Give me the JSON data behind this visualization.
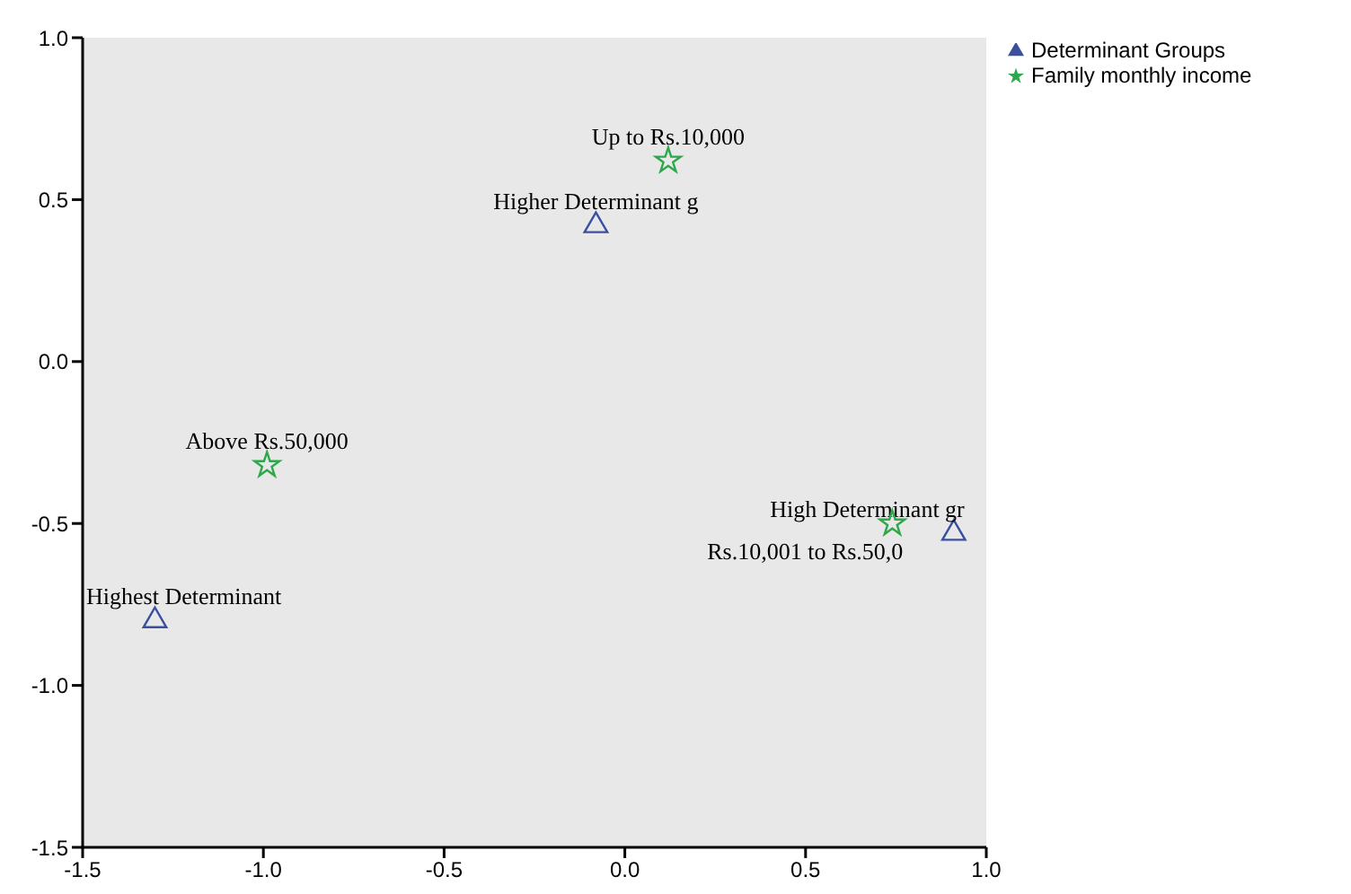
{
  "chart_data": {
    "type": "scatter",
    "xlim": [
      -1.5,
      1.0
    ],
    "xticks": [
      {
        "value": -1.5,
        "label": "-1.5"
      },
      {
        "value": -1.0,
        "label": "-1.0"
      },
      {
        "value": -0.5,
        "label": "-0.5"
      },
      {
        "value": 0.0,
        "label": "0.0"
      },
      {
        "value": 0.5,
        "label": "0.5"
      },
      {
        "value": 1.0,
        "label": "1.0"
      }
    ],
    "ylim": [
      -1.5,
      1.0
    ],
    "yticks": [
      {
        "value": -1.5,
        "label": "-1.5"
      },
      {
        "value": -1.0,
        "label": "-1.0"
      },
      {
        "value": -0.5,
        "label": "-0.5"
      },
      {
        "value": 0.0,
        "label": "0.0"
      },
      {
        "value": 0.5,
        "label": "0.5"
      },
      {
        "value": 1.0,
        "label": "1.0"
      }
    ],
    "legend": "top right",
    "series": [
      {
        "name": "Determinant Groups",
        "color": "#3a4fa0",
        "marker": "triangle",
        "x": [
          -0.08,
          0.91,
          -1.3
        ],
        "values": [
          0.42,
          -0.53,
          -0.8
        ],
        "value_labels": [
          "Higher Determinant g",
          "High  Determinant gr",
          "Highest Determinant"
        ]
      },
      {
        "name": "Family monthly income",
        "color": "#2ea84a",
        "marker": "star",
        "x": [
          0.12,
          -0.99,
          0.74
        ],
        "values": [
          0.62,
          -0.32,
          -0.5
        ],
        "value_labels": [
          "Up to Rs.10,000",
          "Above Rs.50,000",
          "Rs.10,001 to Rs.50,0"
        ]
      }
    ]
  }
}
